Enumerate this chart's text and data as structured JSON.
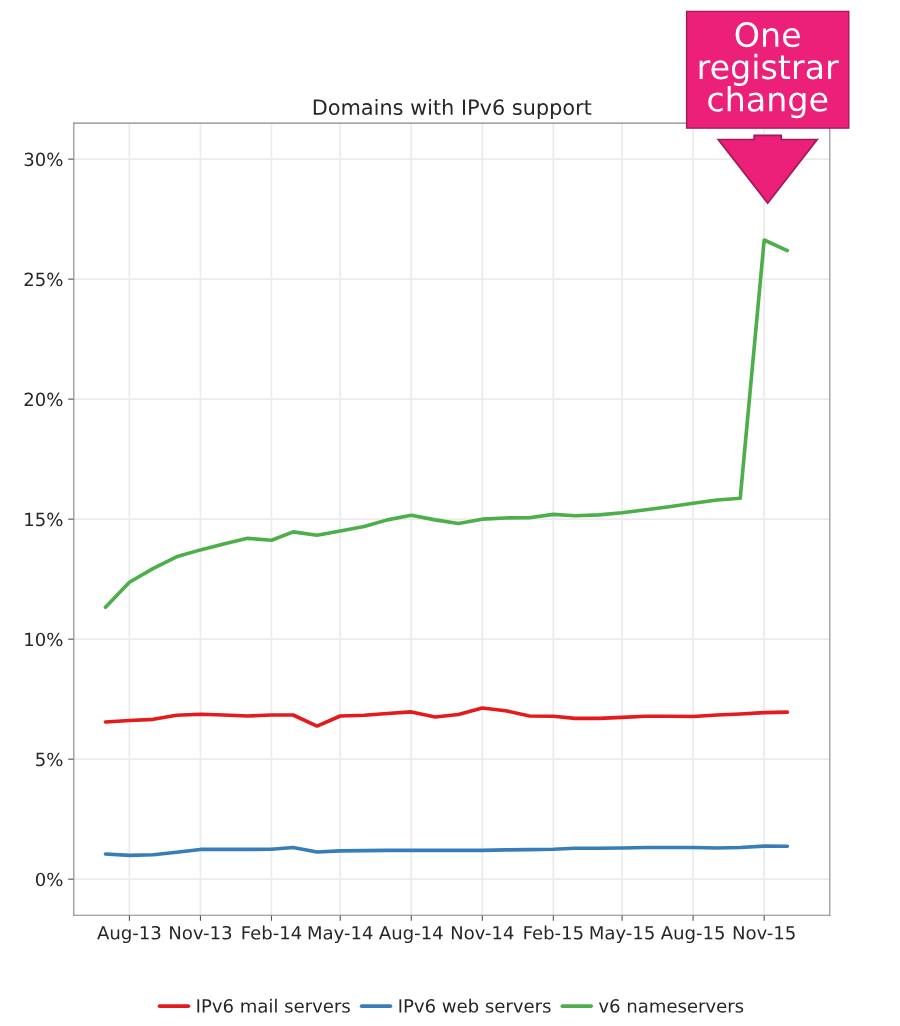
{
  "chart_data": {
    "type": "line",
    "title": "Domains with IPv6 support",
    "x": [
      "2013-07",
      "2013-08",
      "2013-09",
      "2013-10",
      "2013-11",
      "2013-12",
      "2014-01",
      "2014-02",
      "2014-03",
      "2014-04",
      "2014-05",
      "2014-06",
      "2014-07",
      "2014-08",
      "2014-09",
      "2014-10",
      "2014-11",
      "2014-12",
      "2015-01",
      "2015-02",
      "2015-03",
      "2015-04",
      "2015-05",
      "2015-06",
      "2015-07",
      "2015-08",
      "2015-09",
      "2015-10",
      "2015-11",
      "2015-12"
    ],
    "series": [
      {
        "name": "IPv6 mail servers",
        "color": "#e41a1c",
        "values": [
          6.55,
          6.61,
          6.66,
          6.83,
          6.87,
          6.84,
          6.8,
          6.84,
          6.84,
          6.38,
          6.8,
          6.83,
          6.9,
          6.97,
          6.76,
          6.86,
          7.13,
          7.02,
          6.8,
          6.79,
          6.7,
          6.7,
          6.74,
          6.79,
          6.79,
          6.78,
          6.84,
          6.88,
          6.94,
          6.96
        ]
      },
      {
        "name": "IPv6 web servers",
        "color": "#377eb8",
        "values": [
          1.05,
          0.99,
          1.02,
          1.12,
          1.24,
          1.24,
          1.24,
          1.25,
          1.32,
          1.13,
          1.18,
          1.19,
          1.2,
          1.2,
          1.2,
          1.2,
          1.2,
          1.22,
          1.23,
          1.25,
          1.29,
          1.29,
          1.3,
          1.32,
          1.32,
          1.32,
          1.3,
          1.32,
          1.38,
          1.37
        ]
      },
      {
        "name": "v6 nameservers",
        "color": "#4daf4a",
        "values": [
          11.33,
          12.37,
          12.95,
          13.43,
          13.72,
          13.96,
          14.2,
          14.12,
          14.47,
          14.33,
          14.51,
          14.69,
          14.97,
          15.16,
          14.97,
          14.82,
          15.0,
          15.05,
          15.06,
          15.2,
          15.14,
          15.18,
          15.27,
          15.39,
          15.52,
          15.66,
          15.8,
          15.87,
          26.63,
          26.19
        ]
      }
    ],
    "xlim": [
      "2013-05-21",
      "2016-01-25"
    ],
    "xticks": [
      {
        "value": "2013-08",
        "label": "Aug-13"
      },
      {
        "value": "2013-11",
        "label": "Nov-13"
      },
      {
        "value": "2014-02",
        "label": "Feb-14"
      },
      {
        "value": "2014-05",
        "label": "May-14"
      },
      {
        "value": "2014-08",
        "label": "Aug-14"
      },
      {
        "value": "2014-11",
        "label": "Nov-14"
      },
      {
        "value": "2015-02",
        "label": "Feb-15"
      },
      {
        "value": "2015-05",
        "label": "May-15"
      },
      {
        "value": "2015-08",
        "label": "Aug-15"
      },
      {
        "value": "2015-11",
        "label": "Nov-15"
      }
    ],
    "ylim": [
      -1.5,
      31.5
    ],
    "yticks": [
      {
        "value": 0,
        "label": "0%"
      },
      {
        "value": 5,
        "label": "5%"
      },
      {
        "value": 10,
        "label": "10%"
      },
      {
        "value": 15,
        "label": "15%"
      },
      {
        "value": 20,
        "label": "20%"
      },
      {
        "value": 25,
        "label": "25%"
      },
      {
        "value": 30,
        "label": "30%"
      }
    ],
    "annotations": [
      "One registrar change"
    ],
    "grid": true,
    "legend": "bottom",
    "line_style": "solid",
    "marker": "none"
  }
}
